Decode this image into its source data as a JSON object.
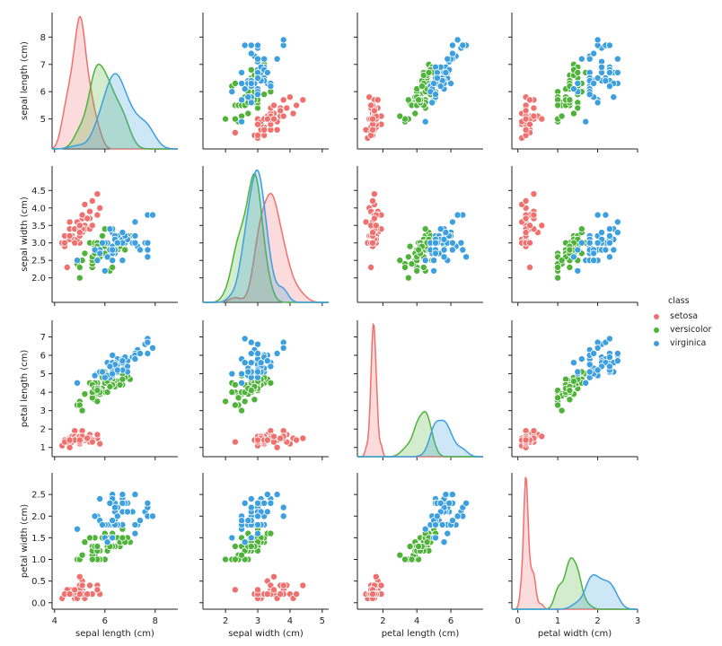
{
  "chart_data": {
    "type": "pairplot",
    "variables": [
      "sepal length (cm)",
      "sepal width (cm)",
      "petal length (cm)",
      "petal width (cm)"
    ],
    "hue_variable": "class",
    "classes": [
      {
        "name": "setosa",
        "color": "#f0706e"
      },
      {
        "name": "versicolor",
        "color": "#4fb33a"
      },
      {
        "name": "virginica",
        "color": "#3b9fe0"
      }
    ],
    "axis_ranges": {
      "sepal length (cm)": [
        3.9,
        8.9
      ],
      "sepal width (cm)": [
        1.3,
        5.2
      ],
      "petal length (cm)": [
        0.5,
        7.9
      ],
      "petal width (cm)": [
        -0.15,
        3.0
      ]
    },
    "ticks": {
      "sepal length (cm)": [
        "5",
        "6",
        "7",
        "8"
      ],
      "sepal width (cm)": [
        "2.0",
        "2.5",
        "3.0",
        "3.5",
        "4.0",
        "4.5"
      ],
      "petal length (cm)": [
        "1",
        "2",
        "3",
        "4",
        "5",
        "6",
        "7"
      ],
      "petal width (cm)": [
        "0.0",
        "0.5",
        "1.0",
        "1.5",
        "2.0",
        "2.5"
      ]
    },
    "x_ticks": {
      "sepal length (cm)": [
        "4",
        "6",
        "8"
      ],
      "sepal width (cm)": [
        "2",
        "3",
        "4",
        "5"
      ],
      "petal length (cm)": [
        "2",
        "4",
        "6"
      ],
      "petal width (cm)": [
        "0",
        "1",
        "2",
        "3"
      ]
    },
    "y_ticks_first_row": [
      "5",
      "6",
      "7",
      "8"
    ],
    "diagonal": "kde",
    "off_diagonal": "scatter",
    "grid": false,
    "legend_position": "right",
    "samples": {
      "columns": [
        "sepal length (cm)",
        "sepal width (cm)",
        "petal length (cm)",
        "petal width (cm)"
      ],
      "setosa": [
        [
          5.1,
          3.5,
          1.4,
          0.2
        ],
        [
          4.9,
          3.0,
          1.4,
          0.2
        ],
        [
          4.7,
          3.2,
          1.3,
          0.2
        ],
        [
          4.6,
          3.1,
          1.5,
          0.2
        ],
        [
          5.0,
          3.6,
          1.4,
          0.2
        ],
        [
          5.4,
          3.9,
          1.7,
          0.4
        ],
        [
          4.6,
          3.4,
          1.4,
          0.3
        ],
        [
          5.0,
          3.4,
          1.5,
          0.2
        ],
        [
          4.4,
          2.9,
          1.4,
          0.2
        ],
        [
          4.9,
          3.1,
          1.5,
          0.1
        ],
        [
          5.4,
          3.7,
          1.5,
          0.2
        ],
        [
          4.8,
          3.4,
          1.6,
          0.2
        ],
        [
          4.8,
          3.0,
          1.4,
          0.1
        ],
        [
          4.3,
          3.0,
          1.1,
          0.1
        ],
        [
          5.8,
          4.0,
          1.2,
          0.2
        ],
        [
          5.7,
          4.4,
          1.5,
          0.4
        ],
        [
          5.4,
          3.9,
          1.3,
          0.4
        ],
        [
          5.1,
          3.5,
          1.4,
          0.3
        ],
        [
          5.7,
          3.8,
          1.7,
          0.3
        ],
        [
          5.1,
          3.8,
          1.5,
          0.3
        ],
        [
          5.4,
          3.4,
          1.7,
          0.2
        ],
        [
          5.1,
          3.7,
          1.5,
          0.4
        ],
        [
          4.6,
          3.6,
          1.0,
          0.2
        ],
        [
          5.1,
          3.3,
          1.7,
          0.5
        ],
        [
          4.8,
          3.4,
          1.9,
          0.2
        ],
        [
          5.0,
          3.0,
          1.6,
          0.2
        ],
        [
          5.0,
          3.4,
          1.6,
          0.4
        ],
        [
          5.2,
          3.5,
          1.5,
          0.2
        ],
        [
          5.2,
          3.4,
          1.4,
          0.2
        ],
        [
          4.7,
          3.2,
          1.6,
          0.2
        ],
        [
          4.8,
          3.1,
          1.6,
          0.2
        ],
        [
          5.4,
          3.4,
          1.5,
          0.4
        ],
        [
          5.2,
          4.1,
          1.5,
          0.1
        ],
        [
          5.5,
          4.2,
          1.4,
          0.2
        ],
        [
          4.9,
          3.1,
          1.5,
          0.2
        ],
        [
          5.0,
          3.2,
          1.2,
          0.2
        ],
        [
          5.5,
          3.5,
          1.3,
          0.2
        ],
        [
          4.9,
          3.6,
          1.4,
          0.1
        ],
        [
          4.4,
          3.0,
          1.3,
          0.2
        ],
        [
          5.1,
          3.4,
          1.5,
          0.2
        ],
        [
          5.0,
          3.5,
          1.3,
          0.3
        ],
        [
          4.5,
          2.3,
          1.3,
          0.3
        ],
        [
          4.4,
          3.2,
          1.3,
          0.2
        ],
        [
          5.0,
          3.5,
          1.6,
          0.6
        ],
        [
          5.1,
          3.8,
          1.9,
          0.4
        ],
        [
          4.8,
          3.0,
          1.4,
          0.3
        ],
        [
          5.1,
          3.8,
          1.6,
          0.2
        ],
        [
          4.6,
          3.2,
          1.4,
          0.2
        ],
        [
          5.3,
          3.7,
          1.5,
          0.2
        ],
        [
          5.0,
          3.3,
          1.4,
          0.2
        ]
      ],
      "versicolor": [
        [
          7.0,
          3.2,
          4.7,
          1.4
        ],
        [
          6.4,
          3.2,
          4.5,
          1.5
        ],
        [
          6.9,
          3.1,
          4.9,
          1.5
        ],
        [
          5.5,
          2.3,
          4.0,
          1.3
        ],
        [
          6.5,
          2.8,
          4.6,
          1.5
        ],
        [
          5.7,
          2.8,
          4.5,
          1.3
        ],
        [
          6.3,
          3.3,
          4.7,
          1.6
        ],
        [
          4.9,
          2.4,
          3.3,
          1.0
        ],
        [
          6.6,
          2.9,
          4.6,
          1.3
        ],
        [
          5.2,
          2.7,
          3.9,
          1.4
        ],
        [
          5.0,
          2.0,
          3.5,
          1.0
        ],
        [
          5.9,
          3.0,
          4.2,
          1.5
        ],
        [
          6.0,
          2.2,
          4.0,
          1.0
        ],
        [
          6.1,
          2.9,
          4.7,
          1.4
        ],
        [
          5.6,
          2.9,
          3.6,
          1.3
        ],
        [
          6.7,
          3.1,
          4.4,
          1.4
        ],
        [
          5.6,
          3.0,
          4.5,
          1.5
        ],
        [
          5.8,
          2.7,
          4.1,
          1.0
        ],
        [
          6.2,
          2.2,
          4.5,
          1.5
        ],
        [
          5.6,
          2.5,
          3.9,
          1.1
        ],
        [
          5.9,
          3.2,
          4.8,
          1.8
        ],
        [
          6.1,
          2.8,
          4.0,
          1.3
        ],
        [
          6.3,
          2.5,
          4.9,
          1.5
        ],
        [
          6.1,
          2.8,
          4.7,
          1.2
        ],
        [
          6.4,
          2.9,
          4.3,
          1.3
        ],
        [
          6.6,
          3.0,
          4.4,
          1.4
        ],
        [
          6.8,
          2.8,
          4.8,
          1.4
        ],
        [
          6.7,
          3.0,
          5.0,
          1.7
        ],
        [
          6.0,
          2.9,
          4.5,
          1.5
        ],
        [
          5.7,
          2.6,
          3.5,
          1.0
        ],
        [
          5.5,
          2.4,
          3.8,
          1.1
        ],
        [
          5.5,
          2.4,
          3.7,
          1.0
        ],
        [
          5.8,
          2.7,
          3.9,
          1.2
        ],
        [
          6.0,
          2.7,
          5.1,
          1.6
        ],
        [
          5.4,
          3.0,
          4.5,
          1.5
        ],
        [
          6.0,
          3.4,
          4.5,
          1.6
        ],
        [
          6.7,
          3.1,
          4.7,
          1.5
        ],
        [
          6.3,
          2.3,
          4.4,
          1.3
        ],
        [
          5.6,
          3.0,
          4.1,
          1.3
        ],
        [
          5.5,
          2.5,
          4.0,
          1.3
        ],
        [
          5.5,
          2.6,
          4.4,
          1.2
        ],
        [
          6.1,
          3.0,
          4.6,
          1.4
        ],
        [
          5.8,
          2.6,
          4.0,
          1.2
        ],
        [
          5.0,
          2.3,
          3.3,
          1.0
        ],
        [
          5.6,
          2.7,
          4.2,
          1.3
        ],
        [
          5.7,
          3.0,
          4.2,
          1.2
        ],
        [
          5.7,
          2.9,
          4.2,
          1.3
        ],
        [
          6.2,
          2.9,
          4.3,
          1.3
        ],
        [
          5.1,
          2.5,
          3.0,
          1.1
        ],
        [
          5.7,
          2.8,
          4.1,
          1.3
        ]
      ],
      "virginica": [
        [
          6.3,
          3.3,
          6.0,
          2.5
        ],
        [
          5.8,
          2.7,
          5.1,
          1.9
        ],
        [
          7.1,
          3.0,
          5.9,
          2.1
        ],
        [
          6.3,
          2.9,
          5.6,
          1.8
        ],
        [
          6.5,
          3.0,
          5.8,
          2.2
        ],
        [
          7.6,
          3.0,
          6.6,
          2.1
        ],
        [
          4.9,
          2.5,
          4.5,
          1.7
        ],
        [
          7.3,
          2.9,
          6.3,
          1.8
        ],
        [
          6.7,
          2.5,
          5.8,
          1.8
        ],
        [
          7.2,
          3.6,
          6.1,
          2.5
        ],
        [
          6.5,
          3.2,
          5.1,
          2.0
        ],
        [
          6.4,
          2.7,
          5.3,
          1.9
        ],
        [
          6.8,
          3.0,
          5.5,
          2.1
        ],
        [
          5.7,
          2.5,
          5.0,
          2.0
        ],
        [
          5.8,
          2.8,
          5.1,
          2.4
        ],
        [
          6.4,
          3.2,
          5.3,
          2.3
        ],
        [
          6.5,
          3.0,
          5.5,
          1.8
        ],
        [
          7.7,
          3.8,
          6.7,
          2.2
        ],
        [
          7.7,
          2.6,
          6.9,
          2.3
        ],
        [
          6.0,
          2.2,
          5.0,
          1.5
        ],
        [
          6.9,
          3.2,
          5.7,
          2.3
        ],
        [
          5.6,
          2.8,
          4.9,
          2.0
        ],
        [
          7.7,
          2.8,
          6.7,
          2.0
        ],
        [
          6.3,
          2.7,
          4.9,
          1.8
        ],
        [
          6.7,
          3.3,
          5.7,
          2.1
        ],
        [
          7.2,
          3.2,
          6.0,
          1.8
        ],
        [
          6.2,
          2.8,
          4.8,
          1.8
        ],
        [
          6.1,
          3.0,
          4.9,
          1.8
        ],
        [
          6.4,
          2.8,
          5.6,
          2.1
        ],
        [
          7.2,
          3.0,
          5.8,
          1.6
        ],
        [
          7.4,
          2.8,
          6.1,
          1.9
        ],
        [
          7.9,
          3.8,
          6.4,
          2.0
        ],
        [
          6.4,
          2.8,
          5.6,
          2.2
        ],
        [
          6.3,
          2.8,
          5.1,
          1.5
        ],
        [
          6.1,
          2.6,
          5.6,
          1.4
        ],
        [
          7.7,
          3.0,
          6.1,
          2.3
        ],
        [
          6.3,
          3.4,
          5.6,
          2.4
        ],
        [
          6.4,
          3.1,
          5.5,
          1.8
        ],
        [
          6.0,
          3.0,
          4.8,
          1.8
        ],
        [
          6.9,
          3.1,
          5.4,
          2.1
        ],
        [
          6.7,
          3.1,
          5.6,
          2.4
        ],
        [
          6.9,
          3.1,
          5.1,
          2.3
        ],
        [
          5.8,
          2.7,
          5.1,
          1.9
        ],
        [
          6.8,
          3.2,
          5.9,
          2.3
        ],
        [
          6.7,
          3.3,
          5.7,
          2.5
        ],
        [
          6.7,
          3.0,
          5.2,
          2.3
        ],
        [
          6.3,
          2.5,
          5.0,
          1.9
        ],
        [
          6.5,
          3.0,
          5.2,
          2.0
        ],
        [
          6.2,
          3.4,
          5.4,
          2.3
        ],
        [
          5.9,
          3.0,
          5.1,
          1.8
        ]
      ]
    }
  },
  "legend": {
    "title": "class",
    "items": [
      "setosa",
      "versicolor",
      "virginica"
    ]
  }
}
